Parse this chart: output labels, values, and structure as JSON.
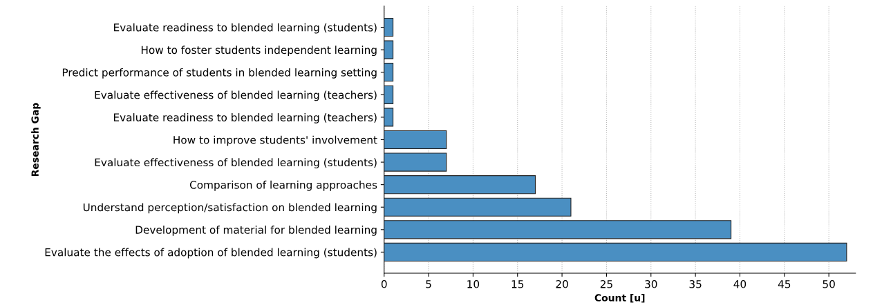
{
  "chart_data": {
    "type": "bar",
    "orientation": "horizontal",
    "xlabel": "Count [u]",
    "ylabel": "Research Gap",
    "categories": [
      "Evaluate readiness to blended learning (students)",
      "How to foster students independent learning",
      "Predict performance of students in blended learning setting",
      "Evaluate effectiveness of blended learning (teachers)",
      "Evaluate readiness to blended learning (teachers)",
      "How to improve students' involvement",
      "Evaluate effectiveness of blended learning (students)",
      "Comparison of learning approaches",
      "Understand perception/satisfaction on blended learning",
      "Development of material for blended learning",
      "Evaluate the effects of adoption of blended learning (students)"
    ],
    "values": [
      1,
      1,
      1,
      1,
      1,
      7,
      7,
      17,
      21,
      39,
      52
    ],
    "color": "#4a8fc2",
    "xlim": [
      0,
      53
    ],
    "xticks": [
      0,
      5,
      10,
      15,
      20,
      25,
      30,
      35,
      40,
      45,
      50
    ],
    "grid": "x",
    "legend": false
  }
}
